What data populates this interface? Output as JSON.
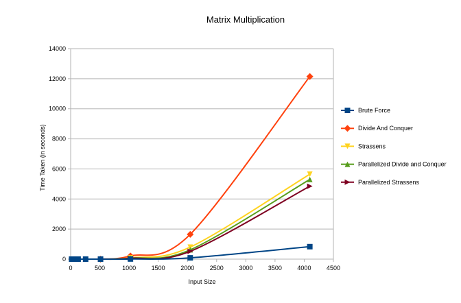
{
  "chart_data": {
    "type": "line",
    "title": "Matrix Multiplication",
    "xlabel": "Input Size",
    "ylabel": "Time Taken (in seconds)",
    "xlim": [
      0,
      4500
    ],
    "ylim": [
      0,
      14000
    ],
    "x_ticks": [
      0,
      500,
      1000,
      1500,
      2000,
      2500,
      3000,
      3500,
      4000,
      4500
    ],
    "y_ticks": [
      0,
      2000,
      4000,
      6000,
      8000,
      10000,
      12000,
      14000
    ],
    "grid": "horizontal",
    "legend_position": "right",
    "smooth": true,
    "series": [
      {
        "name": "Brute Force",
        "color": "#004586",
        "marker": "square",
        "x": [
          16,
          32,
          64,
          128,
          256,
          512,
          1024,
          2048,
          4096
        ],
        "y": [
          0,
          0,
          0,
          0,
          0,
          1,
          8,
          85,
          830
        ]
      },
      {
        "name": "Divide And Conquer",
        "color": "#ff420e",
        "marker": "diamond",
        "x": [
          512,
          1024,
          2048,
          4096
        ],
        "y": [
          0,
          210,
          1650,
          12150
        ]
      },
      {
        "name": "Strassens",
        "color": "#ffd320",
        "marker": "triangle-down",
        "x": [
          512,
          1024,
          2048,
          4096
        ],
        "y": [
          0,
          90,
          800,
          5650
        ]
      },
      {
        "name": "Parallelized Divide and Conquer",
        "color": "#579d1c",
        "marker": "triangle-up",
        "x": [
          512,
          1024,
          2048,
          4096
        ],
        "y": [
          0,
          70,
          620,
          5300
        ]
      },
      {
        "name": "Parallelized Strassens",
        "color": "#7e0021",
        "marker": "triangle-right",
        "x": [
          512,
          1024,
          2048,
          4096
        ],
        "y": [
          0,
          50,
          520,
          4850
        ]
      }
    ]
  }
}
